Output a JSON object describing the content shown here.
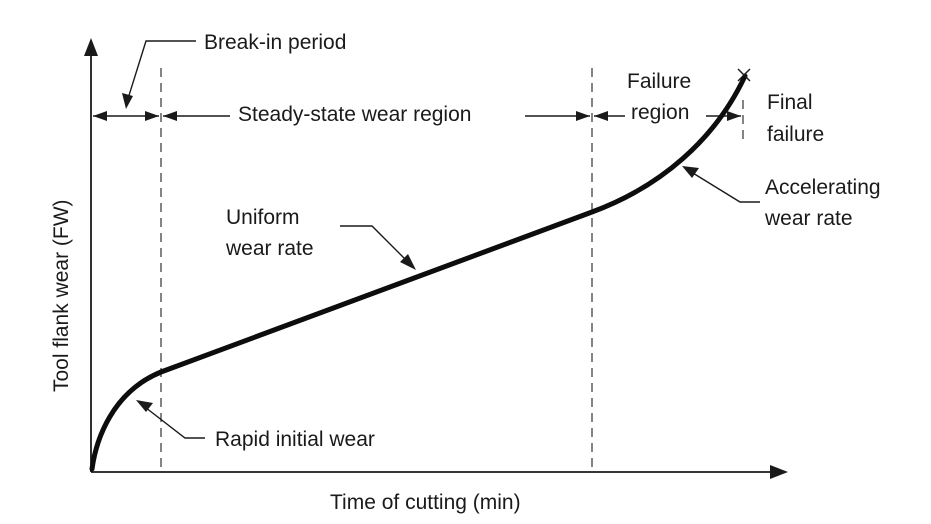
{
  "diagram": {
    "x_axis_label": "Time of cutting (min)",
    "y_axis_label": "Tool flank wear (FW)",
    "regions": {
      "break_in": "Break-in period",
      "steady_state": "Steady-state wear region",
      "failure_line1": "Failure",
      "failure_line2": "region",
      "final_line1": "Final",
      "final_line2": "failure"
    },
    "annotations": {
      "uniform_line1": "Uniform",
      "uniform_line2": "wear rate",
      "accelerating_line1": "Accelerating",
      "accelerating_line2": "wear rate",
      "rapid_initial": "Rapid initial wear"
    },
    "colors": {
      "ink": "#1a1a1a",
      "background": "#ffffff"
    }
  }
}
